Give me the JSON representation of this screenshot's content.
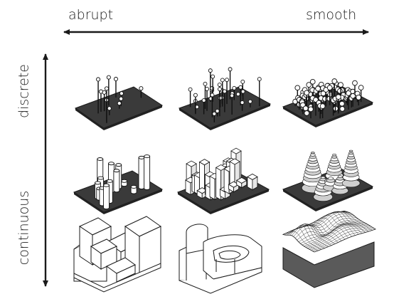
{
  "axis_labels": {
    "abrupt": "abrupt",
    "smooth": "smooth",
    "discrete": "discrete",
    "continuous": "continuous"
  },
  "colors": {
    "ink": "#1a1a1a",
    "plane_dark": "#3a3a3a",
    "plane_side": "#222222",
    "surface_side": "#5a5a5a",
    "white": "#ffffff"
  },
  "panels": [
    {
      "row": "discrete",
      "column": "abrupt"
    },
    {
      "row": "discrete",
      "column": "middle"
    },
    {
      "row": "discrete",
      "column": "smooth"
    },
    {
      "row": "continuous",
      "column": "abrupt"
    },
    {
      "row": "continuous",
      "column": "middle"
    },
    {
      "row": "continuous",
      "column": "smooth"
    }
  ]
}
